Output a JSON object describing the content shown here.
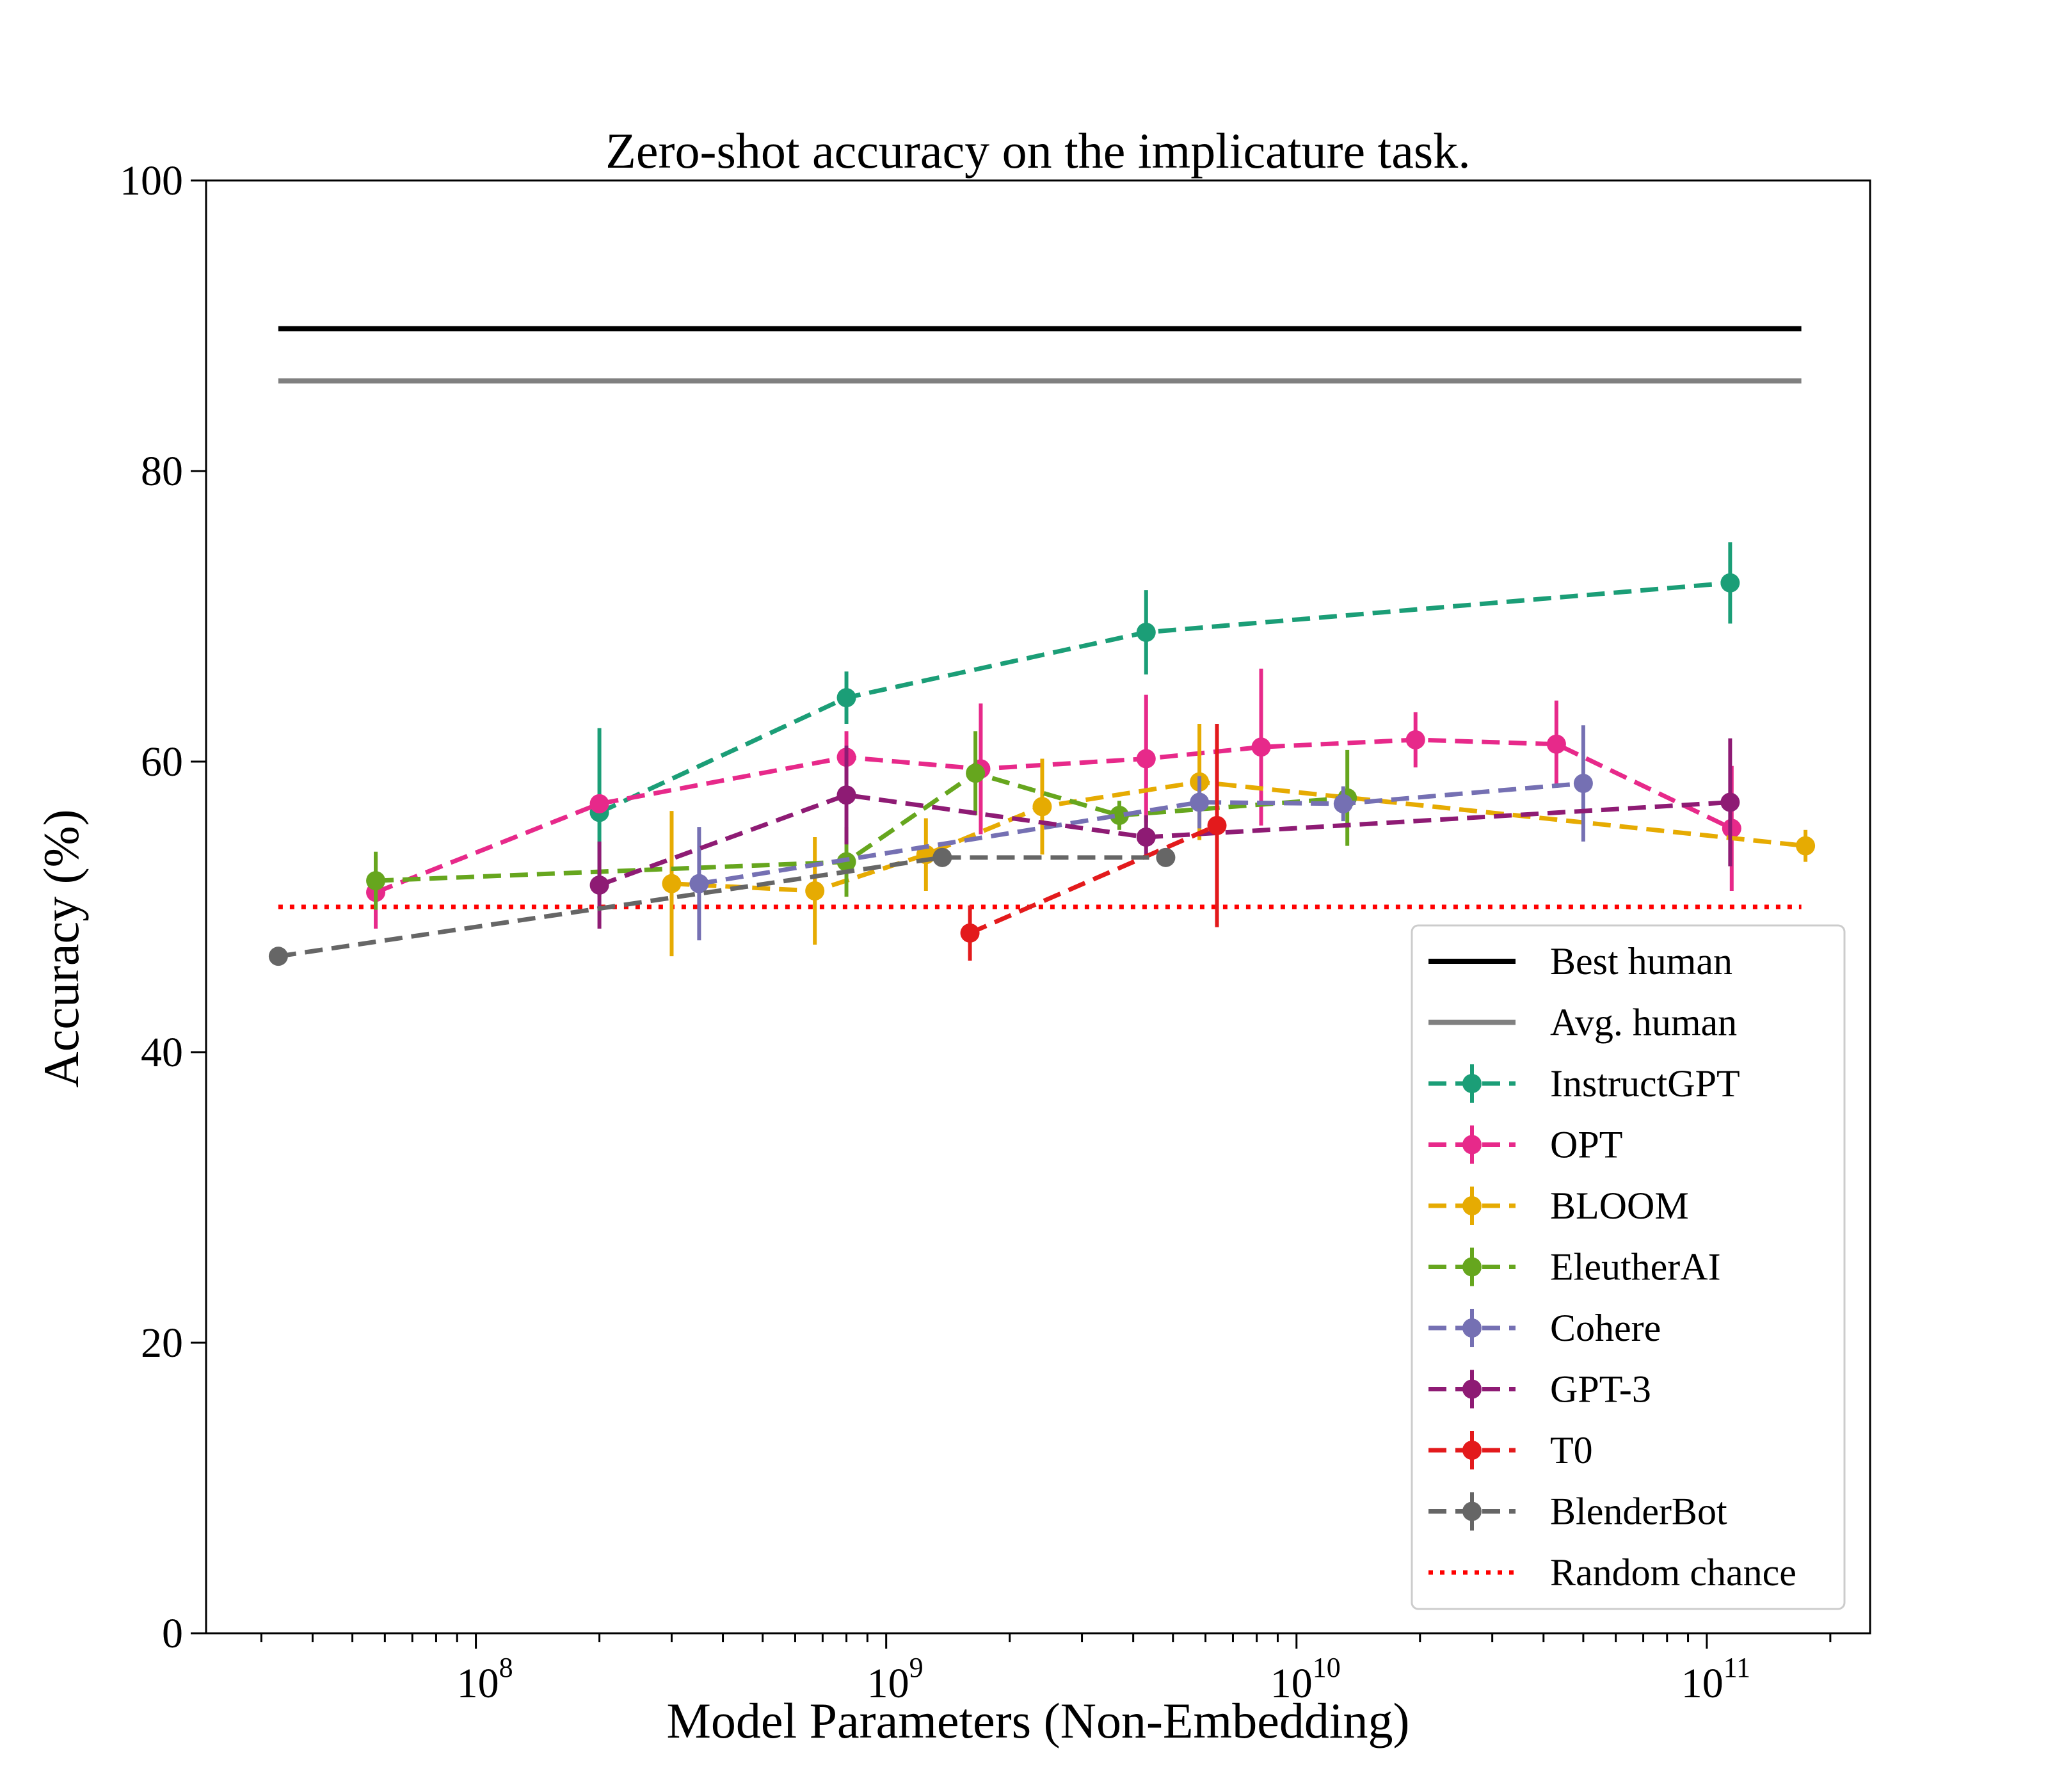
{
  "chart_data": {
    "type": "line",
    "title": "Zero-shot accuracy on the implicature task.",
    "xlabel": "Model Parameters (Non-Embedding)",
    "ylabel": "Accuracy (%)",
    "x_scale": "log",
    "xlim": [
      22000000,
      250000000000
    ],
    "ylim": [
      0,
      100
    ],
    "y_ticks": [
      "0",
      "20",
      "40",
      "60",
      "80",
      "100"
    ],
    "x_ticks": [
      {
        "base": "10",
        "exp": "8"
      },
      {
        "base": "10",
        "exp": "9"
      },
      {
        "base": "10",
        "exp": "10"
      },
      {
        "base": "10",
        "exp": "11"
      }
    ],
    "grid": false,
    "legend_position": "lower-right",
    "reference_lines": [
      {
        "name": "Best human",
        "y": 89.8,
        "x_range": [
          33000000,
          170000000000
        ],
        "color": "#000000",
        "style": "solid"
      },
      {
        "name": "Avg. human",
        "y": 86.2,
        "x_range": [
          33000000,
          170000000000
        ],
        "color": "#808080",
        "style": "solid"
      },
      {
        "name": "Random chance",
        "y": 50.0,
        "x_range": [
          33000000,
          170000000000
        ],
        "color": "#ff0000",
        "style": "dotted"
      }
    ],
    "series": [
      {
        "name": "InstructGPT",
        "color": "#1b9e77",
        "points": [
          {
            "x": 200000000,
            "y": 56.5,
            "err": 5.8
          },
          {
            "x": 800000000,
            "y": 64.4,
            "err": 1.8
          },
          {
            "x": 4300000000,
            "y": 68.9,
            "err": 2.9
          },
          {
            "x": 114000000000,
            "y": 72.3,
            "err": 2.8
          }
        ]
      },
      {
        "name": "OPT",
        "color": "#e7298a",
        "points": [
          {
            "x": 57000000,
            "y": 51.0,
            "err": 2.5
          },
          {
            "x": 200000000,
            "y": 57.1,
            "err": 0.3
          },
          {
            "x": 800000000,
            "y": 60.3,
            "err": 1.8
          },
          {
            "x": 1700000000,
            "y": 59.5,
            "err": 4.5
          },
          {
            "x": 4300000000,
            "y": 60.2,
            "err": 4.4
          },
          {
            "x": 8200000000,
            "y": 61.0,
            "err": 5.4
          },
          {
            "x": 19500000000,
            "y": 61.5,
            "err": 1.9
          },
          {
            "x": 43000000000,
            "y": 61.2,
            "err": 3.0
          },
          {
            "x": 115000000000,
            "y": 55.4,
            "err": 4.3
          }
        ]
      },
      {
        "name": "BLOOM",
        "color": "#e6ab02",
        "points": [
          {
            "x": 300000000,
            "y": 51.6,
            "err": 5.0
          },
          {
            "x": 670000000,
            "y": 51.1,
            "err": 3.7
          },
          {
            "x": 1250000000,
            "y": 53.6,
            "err": 2.5
          },
          {
            "x": 2400000000,
            "y": 56.9,
            "err": 3.3
          },
          {
            "x": 5800000000,
            "y": 58.6,
            "err": 4.0
          },
          {
            "x": 174000000000,
            "y": 54.2,
            "err": 1.1
          }
        ]
      },
      {
        "name": "EleutherAI",
        "color": "#66a61e",
        "points": [
          {
            "x": 57000000,
            "y": 51.8,
            "err": 2.0
          },
          {
            "x": 800000000,
            "y": 53.1,
            "err": 2.4
          },
          {
            "x": 1650000000,
            "y": 59.2,
            "err": 2.9
          },
          {
            "x": 3700000000,
            "y": 56.3,
            "err": 1.0
          },
          {
            "x": 13300000000,
            "y": 57.5,
            "err": 3.3
          }
        ]
      },
      {
        "name": "Cohere",
        "color": "#7570b3",
        "points": [
          {
            "x": 350000000,
            "y": 51.6,
            "err": 3.9
          },
          {
            "x": 5800000000,
            "y": 57.2,
            "err": 1.8
          },
          {
            "x": 13000000000,
            "y": 57.1,
            "err": 1.2
          },
          {
            "x": 50000000000,
            "y": 58.5,
            "err": 4.0
          }
        ]
      },
      {
        "name": "GPT-3",
        "color": "#8e1b74",
        "points": [
          {
            "x": 200000000,
            "y": 51.5,
            "err": 3.0
          },
          {
            "x": 800000000,
            "y": 57.7,
            "err": 3.4
          },
          {
            "x": 4300000000,
            "y": 54.8,
            "err": 1.5
          },
          {
            "x": 114000000000,
            "y": 57.2,
            "err": 4.4
          }
        ]
      },
      {
        "name": "T0",
        "color": "#e31a1c",
        "points": [
          {
            "x": 1600000000,
            "y": 48.2,
            "err": 1.9
          },
          {
            "x": 6400000000,
            "y": 55.6,
            "err": 7.0
          }
        ]
      },
      {
        "name": "BlenderBot",
        "color": "#666666",
        "points": [
          {
            "x": 33000000,
            "y": 46.6,
            "err": 0.3
          },
          {
            "x": 1370000000,
            "y": 53.4,
            "err": 0.3
          },
          {
            "x": 4800000000,
            "y": 53.4,
            "err": 0.3
          }
        ]
      }
    ],
    "legend": [
      {
        "label": "Best human",
        "color": "#000000",
        "kind": "solid"
      },
      {
        "label": "Avg. human",
        "color": "#808080",
        "kind": "solid"
      },
      {
        "label": "InstructGPT",
        "color": "#1b9e77",
        "kind": "errorbar"
      },
      {
        "label": "OPT",
        "color": "#e7298a",
        "kind": "errorbar"
      },
      {
        "label": "BLOOM",
        "color": "#e6ab02",
        "kind": "errorbar"
      },
      {
        "label": "EleutherAI",
        "color": "#66a61e",
        "kind": "errorbar"
      },
      {
        "label": "Cohere",
        "color": "#7570b3",
        "kind": "errorbar"
      },
      {
        "label": "GPT-3",
        "color": "#8e1b74",
        "kind": "errorbar"
      },
      {
        "label": "T0",
        "color": "#e31a1c",
        "kind": "errorbar"
      },
      {
        "label": "BlenderBot",
        "color": "#666666",
        "kind": "errorbar"
      },
      {
        "label": "Random chance",
        "color": "#ff0000",
        "kind": "dotted"
      }
    ]
  }
}
